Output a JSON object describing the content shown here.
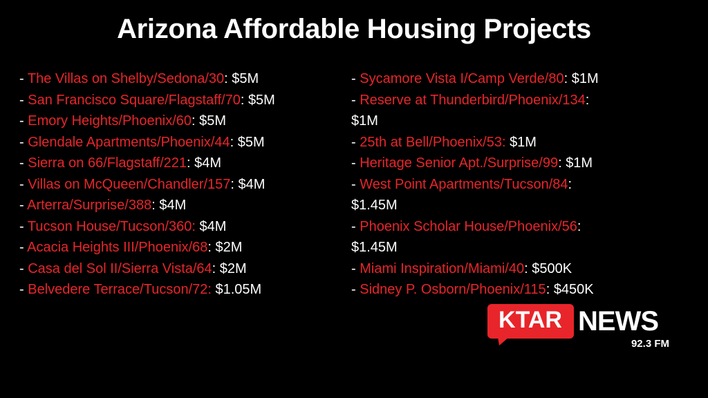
{
  "title": "Arizona Affordable Housing Projects",
  "bullet": "-",
  "columns": [
    {
      "items": [
        {
          "name": "The Villas on Shelby/Sedona/30",
          "colon": ":",
          "amount": "$5M"
        },
        {
          "name": "San Francisco Square/Flagstaff/70",
          "colon": ":",
          "amount": "$5M"
        },
        {
          "name": "Emory Heights/Phoenix/60",
          "colon": ":",
          "amount": "$5M"
        },
        {
          "name": "Glendale Apartments/Phoenix/44",
          "colon": ":",
          "amount": "$5M"
        },
        {
          "name": "Sierra on 66/Flagstaff/221",
          "colon": ":",
          "amount": "$4M"
        },
        {
          "name": "Villas on McQueen/Chandler/157",
          "colon": ":",
          "amount": "$4M"
        },
        {
          "name": "Arterra/Surprise/388",
          "colon": ":",
          "amount": "$4M"
        },
        {
          "name": "Tucson House/Tucson/360:",
          "amount": "$4M"
        },
        {
          "name": "Acacia Heights III/Phoenix/68",
          "colon": ":",
          "amount": "$2M"
        },
        {
          "name": "Casa del Sol II/Sierra Vista/64",
          "colon": ":",
          "amount": "$2M"
        },
        {
          "name": "Belvedere Terrace/Tucson/72:",
          "amount": "$1.05M"
        }
      ]
    },
    {
      "items": [
        {
          "name": "Sycamore Vista I/Camp Verde/80",
          "colon": ":",
          "amount": "$1M"
        },
        {
          "name": "Reserve at Thunderbird/Phoenix/134",
          "colon": ":",
          "amount": "$1M"
        },
        {
          "name": "25th at Bell/Phoenix/53:",
          "amount": "$1M"
        },
        {
          "name": "Heritage Senior Apt./Surprise/99",
          "colon": ":",
          "amount": "$1M"
        },
        {
          "name": "West Point Apartments/Tucson/84",
          "colon": ":",
          "amount": "$1.45M"
        },
        {
          "name": "Phoenix Scholar House/Phoenix/56",
          "colon": ":",
          "amount": "$1.45M"
        },
        {
          "name": "Miami Inspiration/Miami/40",
          "colon": ":",
          "amount": "$500K"
        },
        {
          "name": "Sidney P. Osborn/Phoenix/115",
          "colon": ":",
          "amount": "$450K"
        }
      ]
    }
  ],
  "logo": {
    "brand": "KTAR",
    "word": "NEWS",
    "frequency": "92.3 FM"
  }
}
